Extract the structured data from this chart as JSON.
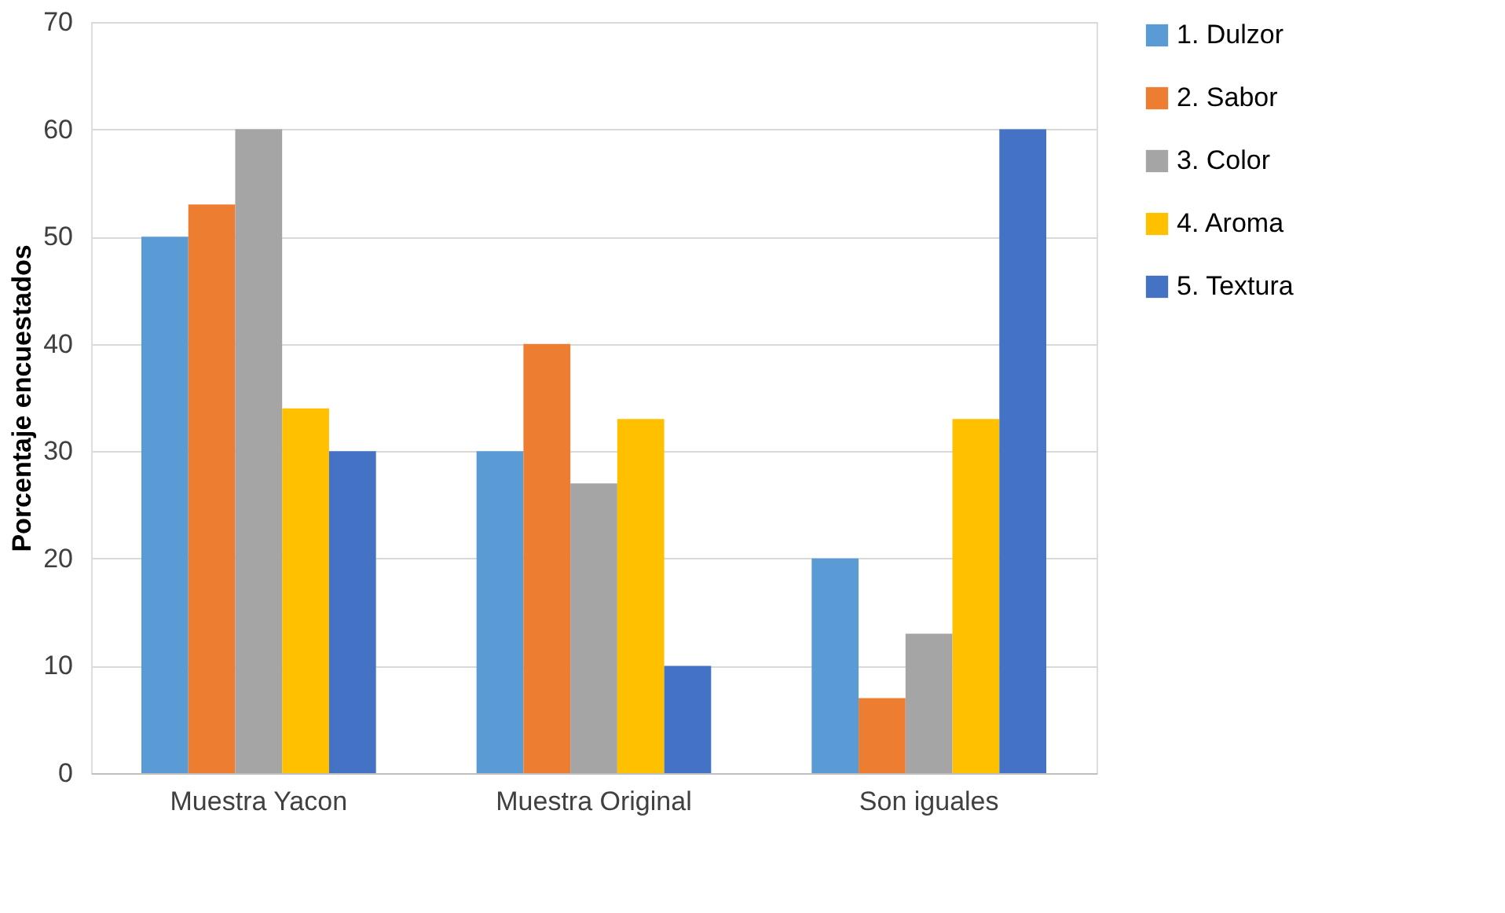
{
  "chart_data": {
    "type": "bar",
    "ylabel": "Porcentaje encuestados",
    "categories": [
      "Muestra Yacon",
      "Muestra Original",
      "Son iguales"
    ],
    "series": [
      {
        "name": "1. Dulzor",
        "color": "#5b9bd5",
        "values": [
          50,
          30,
          20
        ]
      },
      {
        "name": "2. Sabor",
        "color": "#ed7d31",
        "values": [
          53,
          40,
          7
        ]
      },
      {
        "name": "3. Color",
        "color": "#a5a5a5",
        "values": [
          60,
          27,
          13
        ]
      },
      {
        "name": "4. Aroma",
        "color": "#ffc000",
        "values": [
          34,
          33,
          33
        ]
      },
      {
        "name": "5. Textura",
        "color": "#4472c4",
        "values": [
          30,
          10,
          60
        ]
      }
    ],
    "ylim": [
      0,
      70
    ],
    "yticks": [
      0,
      10,
      20,
      30,
      40,
      50,
      60,
      70
    ],
    "grid": "y",
    "legend": "right"
  }
}
